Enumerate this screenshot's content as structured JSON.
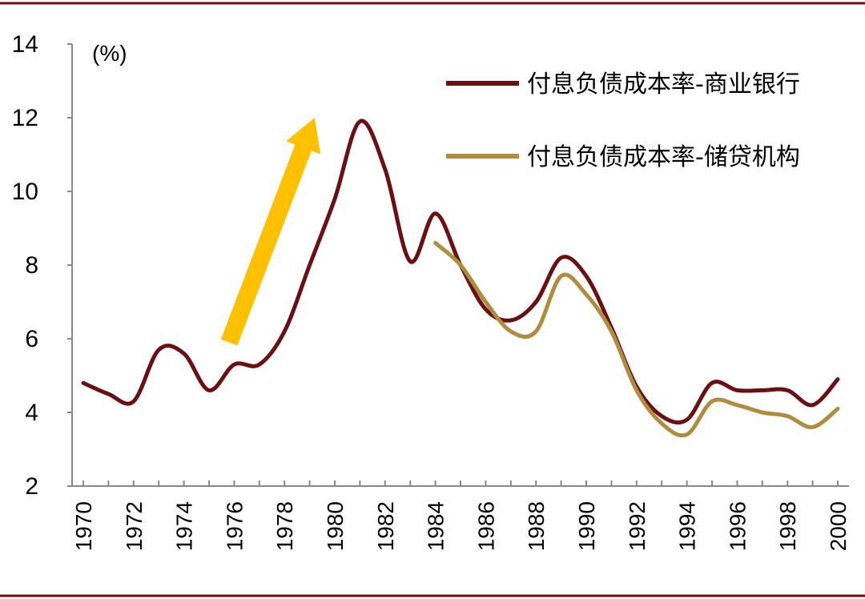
{
  "chart_data": {
    "type": "line",
    "unit_label": "(%)",
    "ylim": [
      2,
      14
    ],
    "yticks": [
      "2",
      "4",
      "6",
      "8",
      "10",
      "12",
      "14"
    ],
    "xlim": [
      1969.5,
      2000.5
    ],
    "xticks": [
      "1970",
      "1972",
      "1974",
      "1976",
      "1978",
      "1980",
      "1982",
      "1984",
      "1986",
      "1988",
      "1990",
      "1992",
      "1994",
      "1996",
      "1998",
      "2000"
    ],
    "grid": false,
    "legend_position": "top-right",
    "series": [
      {
        "name": "付息负债成本率-商业银行",
        "color": "#6b0f12",
        "x": [
          1970,
          1971,
          1972,
          1973,
          1974,
          1975,
          1976,
          1977,
          1978,
          1979,
          1980,
          1981,
          1982,
          1983,
          1984,
          1985,
          1986,
          1987,
          1988,
          1989,
          1990,
          1991,
          1992,
          1993,
          1994,
          1995,
          1996,
          1997,
          1998,
          1999,
          2000
        ],
        "y": [
          4.8,
          4.5,
          4.3,
          5.7,
          5.6,
          4.6,
          5.3,
          5.3,
          6.2,
          8.0,
          9.8,
          11.9,
          10.6,
          8.1,
          9.4,
          8.0,
          6.8,
          6.5,
          7.0,
          8.2,
          7.7,
          6.3,
          4.7,
          3.9,
          3.8,
          4.8,
          4.6,
          4.6,
          4.6,
          4.2,
          4.9
        ]
      },
      {
        "name": "付息负债成本率-储贷机构",
        "color": "#b08c3e",
        "x": [
          1984,
          1985,
          1986,
          1987,
          1988,
          1989,
          1990,
          1991,
          1992,
          1993,
          1994,
          1995,
          1996,
          1997,
          1998,
          1999,
          2000
        ],
        "y": [
          8.6,
          8.0,
          7.0,
          6.2,
          6.2,
          7.7,
          7.2,
          6.2,
          4.6,
          3.7,
          3.4,
          4.3,
          4.2,
          4.0,
          3.9,
          3.6,
          4.1
        ]
      }
    ],
    "annotation": {
      "type": "arrow",
      "color": "#ffc000",
      "from": [
        1975.8,
        5.9
      ],
      "to": [
        1979.2,
        12.0
      ]
    }
  }
}
